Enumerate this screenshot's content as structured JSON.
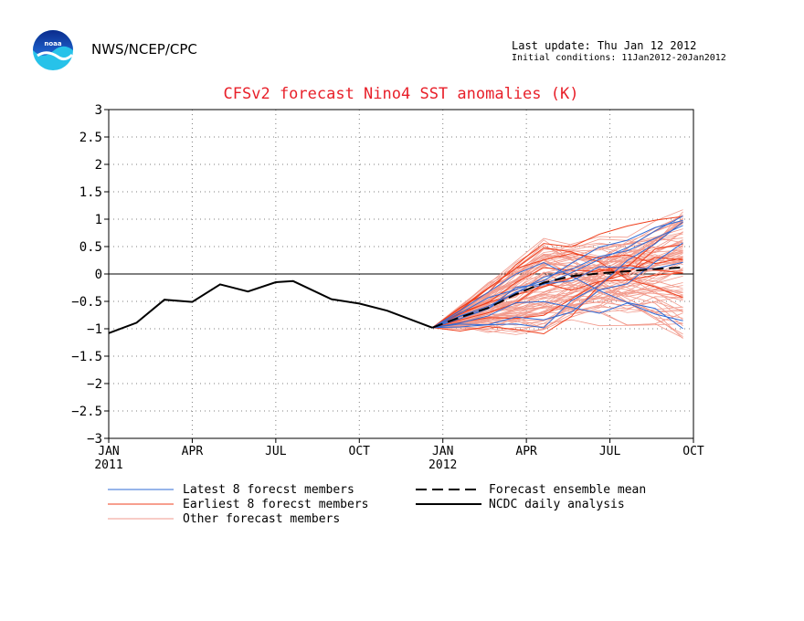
{
  "header": {
    "organization": "NWS/NCEP/CPC",
    "last_update": "Last update: Thu Jan 12 2012",
    "initial_conditions": "Initial conditions: 11Jan2012-20Jan2012",
    "logo_text": "noaa"
  },
  "colors": {
    "title": "#e8202a",
    "latest": "#2f6bd6",
    "earliest": "#ef3f1c",
    "other": "#f29a8c",
    "analysis": "#000000",
    "mean": "#000000",
    "grid": "#7f7f7f"
  },
  "chart_data": {
    "type": "line",
    "title": "CFSv2 forecast Nino4 SST anomalies (K)",
    "xlabel": "",
    "ylabel": "",
    "xlim": [
      "2011-01",
      "2012-10"
    ],
    "ylim": [
      -3,
      3
    ],
    "yticks": [
      3,
      2.5,
      2,
      1.5,
      1,
      0.5,
      0,
      -0.5,
      -1,
      -1.5,
      -2,
      -2.5,
      -3
    ],
    "ytick_labels": [
      "3",
      "2.5",
      "2",
      "1.5",
      "1",
      "0.5",
      "0",
      "−0.5",
      "−1",
      "−1.5",
      "−2",
      "−2.5",
      "−3"
    ],
    "xticks": [
      {
        "month": "2011-01",
        "label": "JAN",
        "year": "2011"
      },
      {
        "month": "2011-04",
        "label": "APR",
        "year": ""
      },
      {
        "month": "2011-07",
        "label": "JUL",
        "year": ""
      },
      {
        "month": "2011-10",
        "label": "OCT",
        "year": ""
      },
      {
        "month": "2012-01",
        "label": "JAN",
        "year": "2012"
      },
      {
        "month": "2012-04",
        "label": "APR",
        "year": ""
      },
      {
        "month": "2012-07",
        "label": "JUL",
        "year": ""
      },
      {
        "month": "2012-10",
        "label": "OCT",
        "year": ""
      }
    ],
    "grid": true,
    "zero_line": true,
    "legend": {
      "position": "bottom",
      "entries": [
        {
          "label": "Latest 8 forecst members",
          "series": "latest"
        },
        {
          "label": "Earliest 8 forecst members",
          "series": "earliest"
        },
        {
          "label": "Other forecast members",
          "series": "other"
        },
        {
          "label": "Forecast ensemble mean",
          "series": "mean"
        },
        {
          "label": "NCDC daily analysis",
          "series": "analysis"
        }
      ]
    },
    "forecast_start": "2011-12-20",
    "forecast_end": "2012-09-20",
    "series": [
      {
        "name": "NCDC daily analysis",
        "key": "analysis",
        "points": [
          [
            "2011-01-01",
            -1.08
          ],
          [
            "2011-02-01",
            -0.89
          ],
          [
            "2011-03-01",
            -0.47
          ],
          [
            "2011-04-01",
            -0.51
          ],
          [
            "2011-05-01",
            -0.19
          ],
          [
            "2011-06-01",
            -0.32
          ],
          [
            "2011-07-01",
            -0.15
          ],
          [
            "2011-07-20",
            -0.13
          ],
          [
            "2011-09-01",
            -0.46
          ],
          [
            "2011-10-01",
            -0.54
          ],
          [
            "2011-11-01",
            -0.67
          ],
          [
            "2011-12-20",
            -0.98
          ]
        ]
      },
      {
        "name": "Forecast ensemble mean",
        "key": "mean",
        "points": [
          [
            "2011-12-20",
            -0.98
          ],
          [
            "2012-01-20",
            -0.79
          ],
          [
            "2012-02-20",
            -0.62
          ],
          [
            "2012-03-20",
            -0.37
          ],
          [
            "2012-04-20",
            -0.16
          ],
          [
            "2012-05-20",
            -0.04
          ],
          [
            "2012-06-20",
            0.01
          ],
          [
            "2012-07-20",
            0.05
          ],
          [
            "2012-08-20",
            0.09
          ],
          [
            "2012-09-20",
            0.12
          ]
        ]
      }
    ],
    "ensemble": {
      "start_value": -0.98,
      "monthly_offsets_from_start": [
        1,
        2,
        3,
        4,
        5,
        6,
        7,
        8,
        9
      ],
      "latest": {
        "count": 8,
        "end_range": [
          -1.5,
          1.45
        ],
        "mid_range": [
          -0.9,
          0.5
        ]
      },
      "earliest": {
        "count": 8,
        "end_range": [
          -1.0,
          1.15
        ],
        "mid_range": [
          -1.1,
          0.55
        ]
      },
      "other": {
        "count": 80,
        "end_range": [
          -1.2,
          1.2
        ],
        "mid_range": [
          -1.05,
          0.6
        ]
      }
    }
  }
}
